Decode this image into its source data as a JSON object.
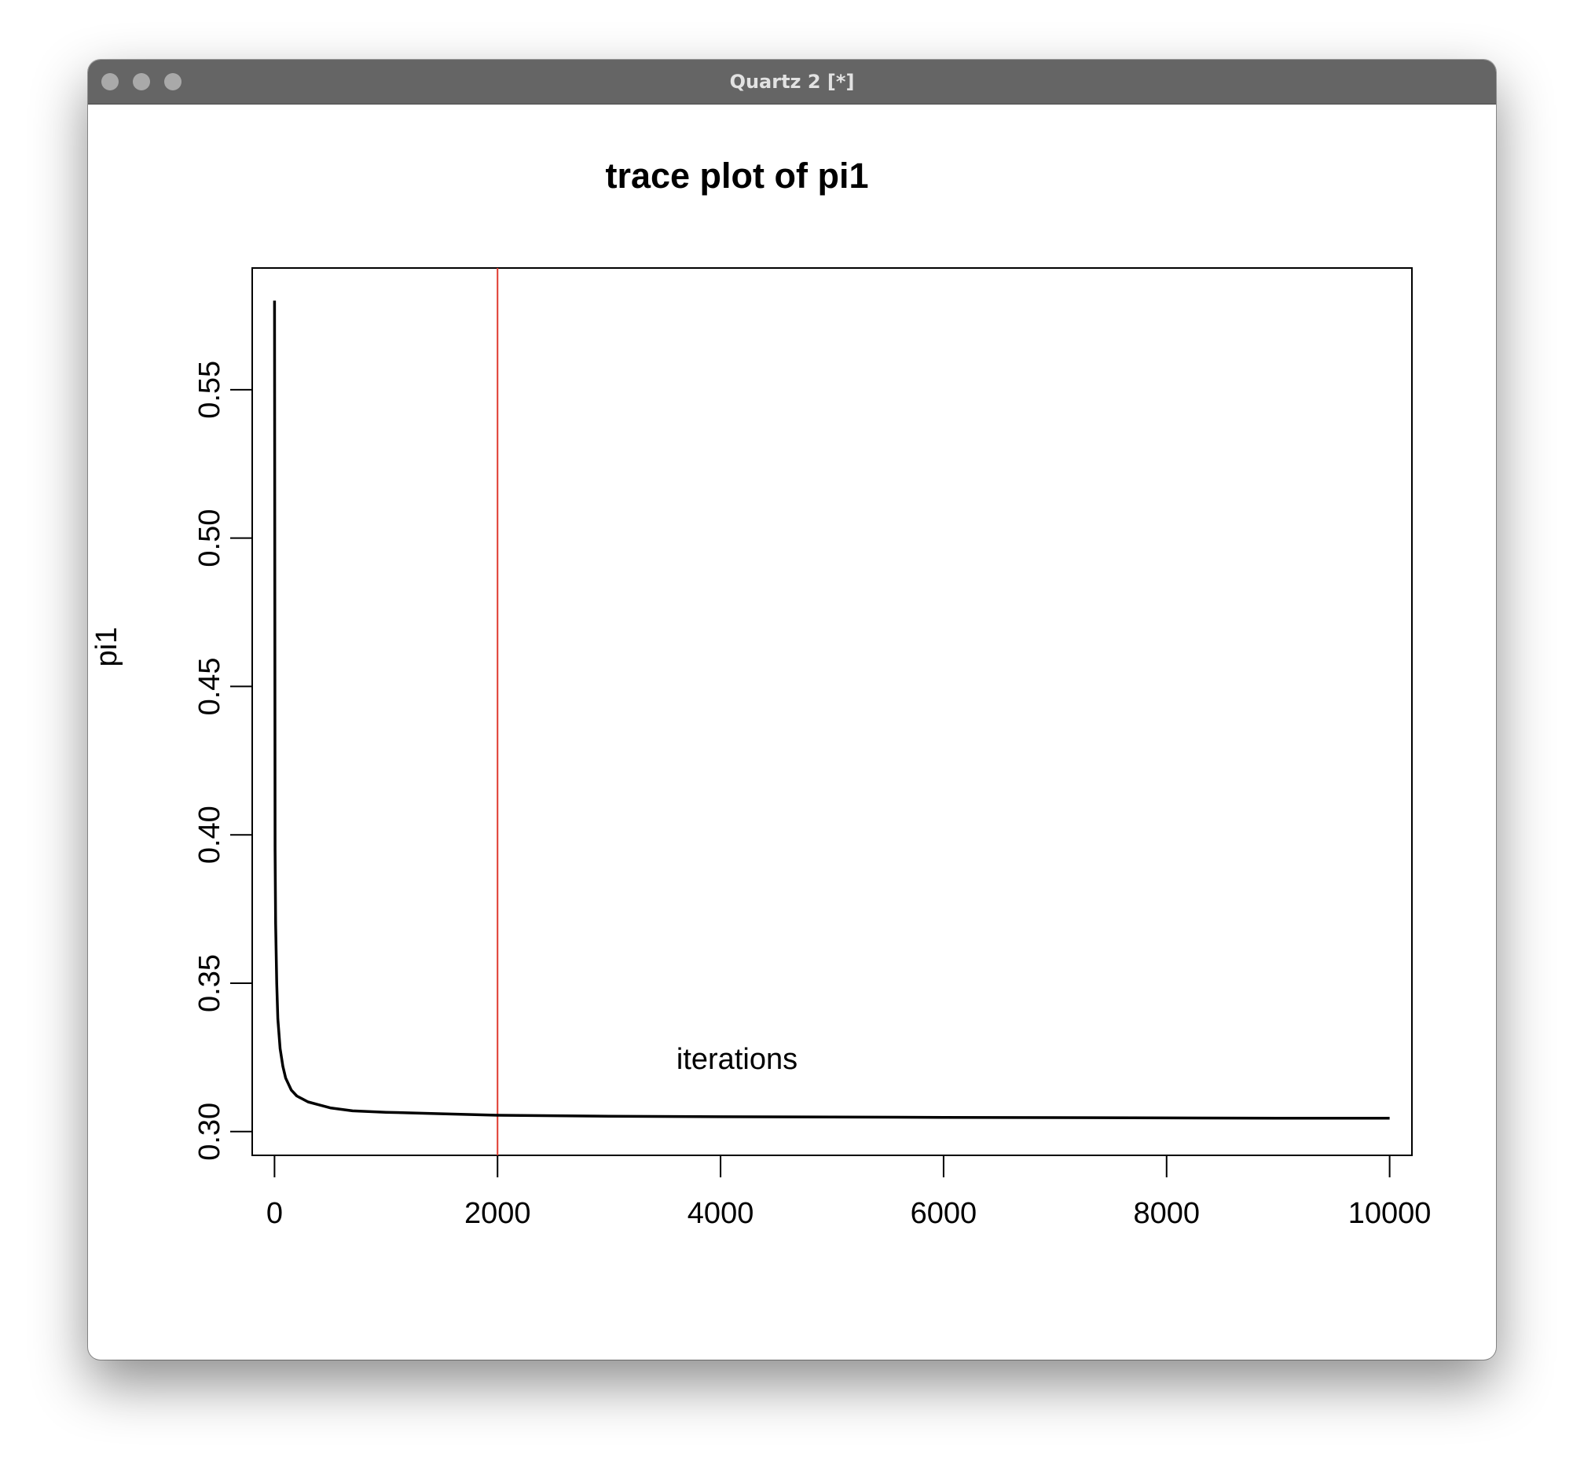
{
  "window": {
    "title": "Quartz 2 [*]",
    "buttons": [
      "close-button",
      "minimize-button",
      "zoom-button"
    ]
  },
  "chart_data": {
    "type": "line",
    "title": "trace plot of pi1",
    "xlabel": "iterations",
    "ylabel": "pi1",
    "xlim": [
      -200,
      10200
    ],
    "ylim": [
      0.292,
      0.591
    ],
    "x_ticks": [
      0,
      2000,
      4000,
      6000,
      8000,
      10000
    ],
    "x_tick_labels": [
      "0",
      "2000",
      "4000",
      "6000",
      "8000",
      "10000"
    ],
    "y_ticks": [
      0.3,
      0.35,
      0.4,
      0.45,
      0.5,
      0.55
    ],
    "y_tick_labels": [
      "0.30",
      "0.35",
      "0.40",
      "0.45",
      "0.50",
      "0.55"
    ],
    "grid": false,
    "series": [
      {
        "color": "#000000",
        "x": [
          0,
          5,
          10,
          20,
          30,
          50,
          75,
          100,
          150,
          200,
          300,
          400,
          500,
          700,
          1000,
          1500,
          2000,
          3000,
          4000,
          5000,
          6000,
          7000,
          8000,
          9000,
          10000
        ],
        "y": [
          0.58,
          0.395,
          0.37,
          0.35,
          0.338,
          0.328,
          0.322,
          0.318,
          0.314,
          0.312,
          0.31,
          0.309,
          0.308,
          0.307,
          0.3065,
          0.306,
          0.3055,
          0.3052,
          0.305,
          0.3049,
          0.3048,
          0.3047,
          0.3046,
          0.3045,
          0.3045
        ]
      }
    ],
    "vlines": [
      {
        "x": 2000,
        "color": "#e03a2f"
      }
    ]
  }
}
